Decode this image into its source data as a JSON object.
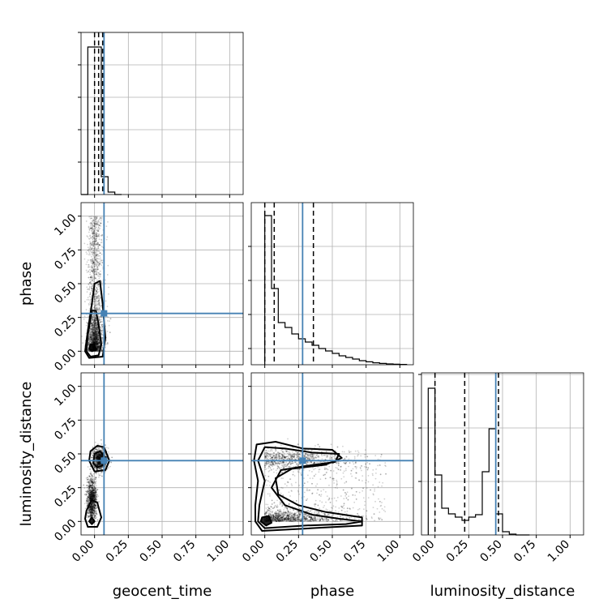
{
  "chart_data": {
    "type": "corner",
    "parameters": [
      "geocent_time",
      "phase",
      "luminosity_distance"
    ],
    "axis_range": [
      -0.1,
      1.1
    ],
    "ticks": [
      0.0,
      0.25,
      0.5,
      0.75,
      1.0
    ],
    "tick_labels": [
      "0.00",
      "0.25",
      "0.50",
      "0.75",
      "1.00"
    ],
    "grid": true,
    "truths": {
      "geocent_time": 0.07,
      "phase": 0.28,
      "luminosity_distance": 0.45
    },
    "truth_color": "#4682b4",
    "hist_color": "#000000",
    "histograms": [
      {
        "param": "geocent_time",
        "bin_edges": [
          -0.1,
          -0.05,
          0.0,
          0.05,
          0.1,
          0.15,
          0.2
        ],
        "counts": [
          0,
          0.91,
          0.91,
          0.11,
          0.015,
          0.0
        ],
        "quantiles": [
          0.0,
          0.03,
          0.06
        ],
        "ytick_fracs": [
          0.2,
          0.4,
          0.6,
          0.8,
          1.0
        ]
      },
      {
        "param": "phase",
        "bin_edges": [
          0.0,
          0.05,
          0.1,
          0.15,
          0.2,
          0.25,
          0.3,
          0.35,
          0.4,
          0.45,
          0.5,
          0.55,
          0.6,
          0.65,
          0.7,
          0.75,
          0.8,
          0.85,
          0.9,
          0.95,
          1.0,
          1.05
        ],
        "counts": [
          0.92,
          0.47,
          0.26,
          0.23,
          0.19,
          0.16,
          0.14,
          0.12,
          0.1,
          0.085,
          0.07,
          0.055,
          0.045,
          0.035,
          0.025,
          0.018,
          0.012,
          0.008,
          0.005,
          0.003,
          0.002
        ],
        "quantiles": [
          0.0,
          0.07,
          0.36
        ],
        "ytick_fracs": [
          0.1,
          0.31,
          0.52,
          0.73
        ]
      },
      {
        "param": "luminosity_distance",
        "bin_edges": [
          -0.05,
          0.0,
          0.05,
          0.1,
          0.15,
          0.2,
          0.25,
          0.3,
          0.35,
          0.4,
          0.45,
          0.5,
          0.55,
          0.6,
          0.65,
          0.7
        ],
        "counts": [
          0.905,
          0.37,
          0.165,
          0.13,
          0.11,
          0.09,
          0.11,
          0.125,
          0.39,
          0.655,
          0.13,
          0.02,
          0.005,
          0.0,
          0.0
        ],
        "quantiles": [
          0.0,
          0.22,
          0.47
        ],
        "ytick_fracs": [
          0.33,
          0.66,
          0.99
        ]
      }
    ],
    "scatter_panels": [
      {
        "x": "geocent_time",
        "y": "phase",
        "contours": [
          [
            [
              -0.04,
              0.02
            ],
            [
              -0.02,
              0.0
            ],
            [
              0.01,
              0.01
            ],
            [
              0.0,
              0.05
            ],
            [
              -0.03,
              0.05
            ],
            [
              -0.04,
              0.02
            ]
          ],
          [
            [
              -0.06,
              0.0
            ],
            [
              -0.03,
              -0.04
            ],
            [
              0.03,
              -0.03
            ],
            [
              0.05,
              0.05
            ],
            [
              0.03,
              0.2
            ],
            [
              0.01,
              0.3
            ],
            [
              -0.02,
              0.3
            ],
            [
              -0.05,
              0.12
            ],
            [
              -0.06,
              0.0
            ]
          ],
          [
            [
              -0.07,
              0.0
            ],
            [
              -0.04,
              -0.05
            ],
            [
              0.06,
              -0.04
            ],
            [
              0.08,
              0.1
            ],
            [
              0.06,
              0.35
            ],
            [
              0.04,
              0.52
            ],
            [
              0.0,
              0.5
            ],
            [
              -0.02,
              0.35
            ],
            [
              -0.05,
              0.15
            ],
            [
              -0.07,
              0.0
            ]
          ]
        ]
      },
      {
        "x": "geocent_time",
        "y": "luminosity_distance",
        "contours": [
          [
            [
              -0.04,
              0.0
            ],
            [
              -0.02,
              -0.02
            ],
            [
              0.0,
              0.0
            ],
            [
              -0.02,
              0.03
            ],
            [
              -0.04,
              0.0
            ]
          ],
          [
            [
              -0.07,
              0.02
            ],
            [
              -0.05,
              -0.04
            ],
            [
              0.02,
              -0.04
            ],
            [
              0.05,
              0.03
            ],
            [
              0.02,
              0.14
            ],
            [
              -0.02,
              0.16
            ],
            [
              -0.06,
              0.08
            ],
            [
              -0.07,
              0.02
            ]
          ],
          [
            [
              -0.01,
              0.43
            ],
            [
              0.02,
              0.4
            ],
            [
              0.07,
              0.42
            ],
            [
              0.08,
              0.47
            ],
            [
              0.04,
              0.52
            ],
            [
              0.0,
              0.5
            ],
            [
              -0.01,
              0.43
            ]
          ],
          [
            [
              -0.04,
              0.45
            ],
            [
              0.0,
              0.37
            ],
            [
              0.08,
              0.38
            ],
            [
              0.11,
              0.45
            ],
            [
              0.07,
              0.55
            ],
            [
              0.02,
              0.56
            ],
            [
              -0.03,
              0.52
            ],
            [
              -0.04,
              0.45
            ]
          ]
        ]
      },
      {
        "x": "phase",
        "y": "luminosity_distance",
        "contours": [
          [
            [
              -0.03,
              0.0
            ],
            [
              0.01,
              -0.03
            ],
            [
              0.05,
              -0.01
            ],
            [
              0.03,
              0.04
            ],
            [
              -0.02,
              0.03
            ],
            [
              -0.03,
              0.0
            ]
          ],
          [
            [
              -0.05,
              0.0
            ],
            [
              0.0,
              -0.05
            ],
            [
              0.3,
              -0.03
            ],
            [
              0.6,
              -0.02
            ],
            [
              0.72,
              0.0
            ],
            [
              0.55,
              0.02
            ],
            [
              0.35,
              0.05
            ],
            [
              0.15,
              0.12
            ],
            [
              0.05,
              0.25
            ],
            [
              0.12,
              0.38
            ],
            [
              0.3,
              0.41
            ],
            [
              0.52,
              0.44
            ],
            [
              0.55,
              0.5
            ],
            [
              0.35,
              0.51
            ],
            [
              0.15,
              0.54
            ],
            [
              0.0,
              0.55
            ],
            [
              -0.05,
              0.45
            ],
            [
              0.0,
              0.3
            ],
            [
              -0.04,
              0.12
            ],
            [
              -0.05,
              0.0
            ]
          ],
          [
            [
              -0.07,
              0.0
            ],
            [
              -0.02,
              -0.07
            ],
            [
              0.35,
              -0.05
            ],
            [
              0.72,
              -0.03
            ],
            [
              0.72,
              0.03
            ],
            [
              0.45,
              0.07
            ],
            [
              0.25,
              0.12
            ],
            [
              0.1,
              0.2
            ],
            [
              0.08,
              0.32
            ],
            [
              0.2,
              0.39
            ],
            [
              0.45,
              0.42
            ],
            [
              0.57,
              0.47
            ],
            [
              0.5,
              0.53
            ],
            [
              0.28,
              0.54
            ],
            [
              0.08,
              0.59
            ],
            [
              -0.06,
              0.57
            ],
            [
              -0.08,
              0.45
            ],
            [
              -0.05,
              0.3
            ],
            [
              -0.07,
              0.12
            ],
            [
              -0.07,
              0.0
            ]
          ]
        ]
      }
    ]
  }
}
